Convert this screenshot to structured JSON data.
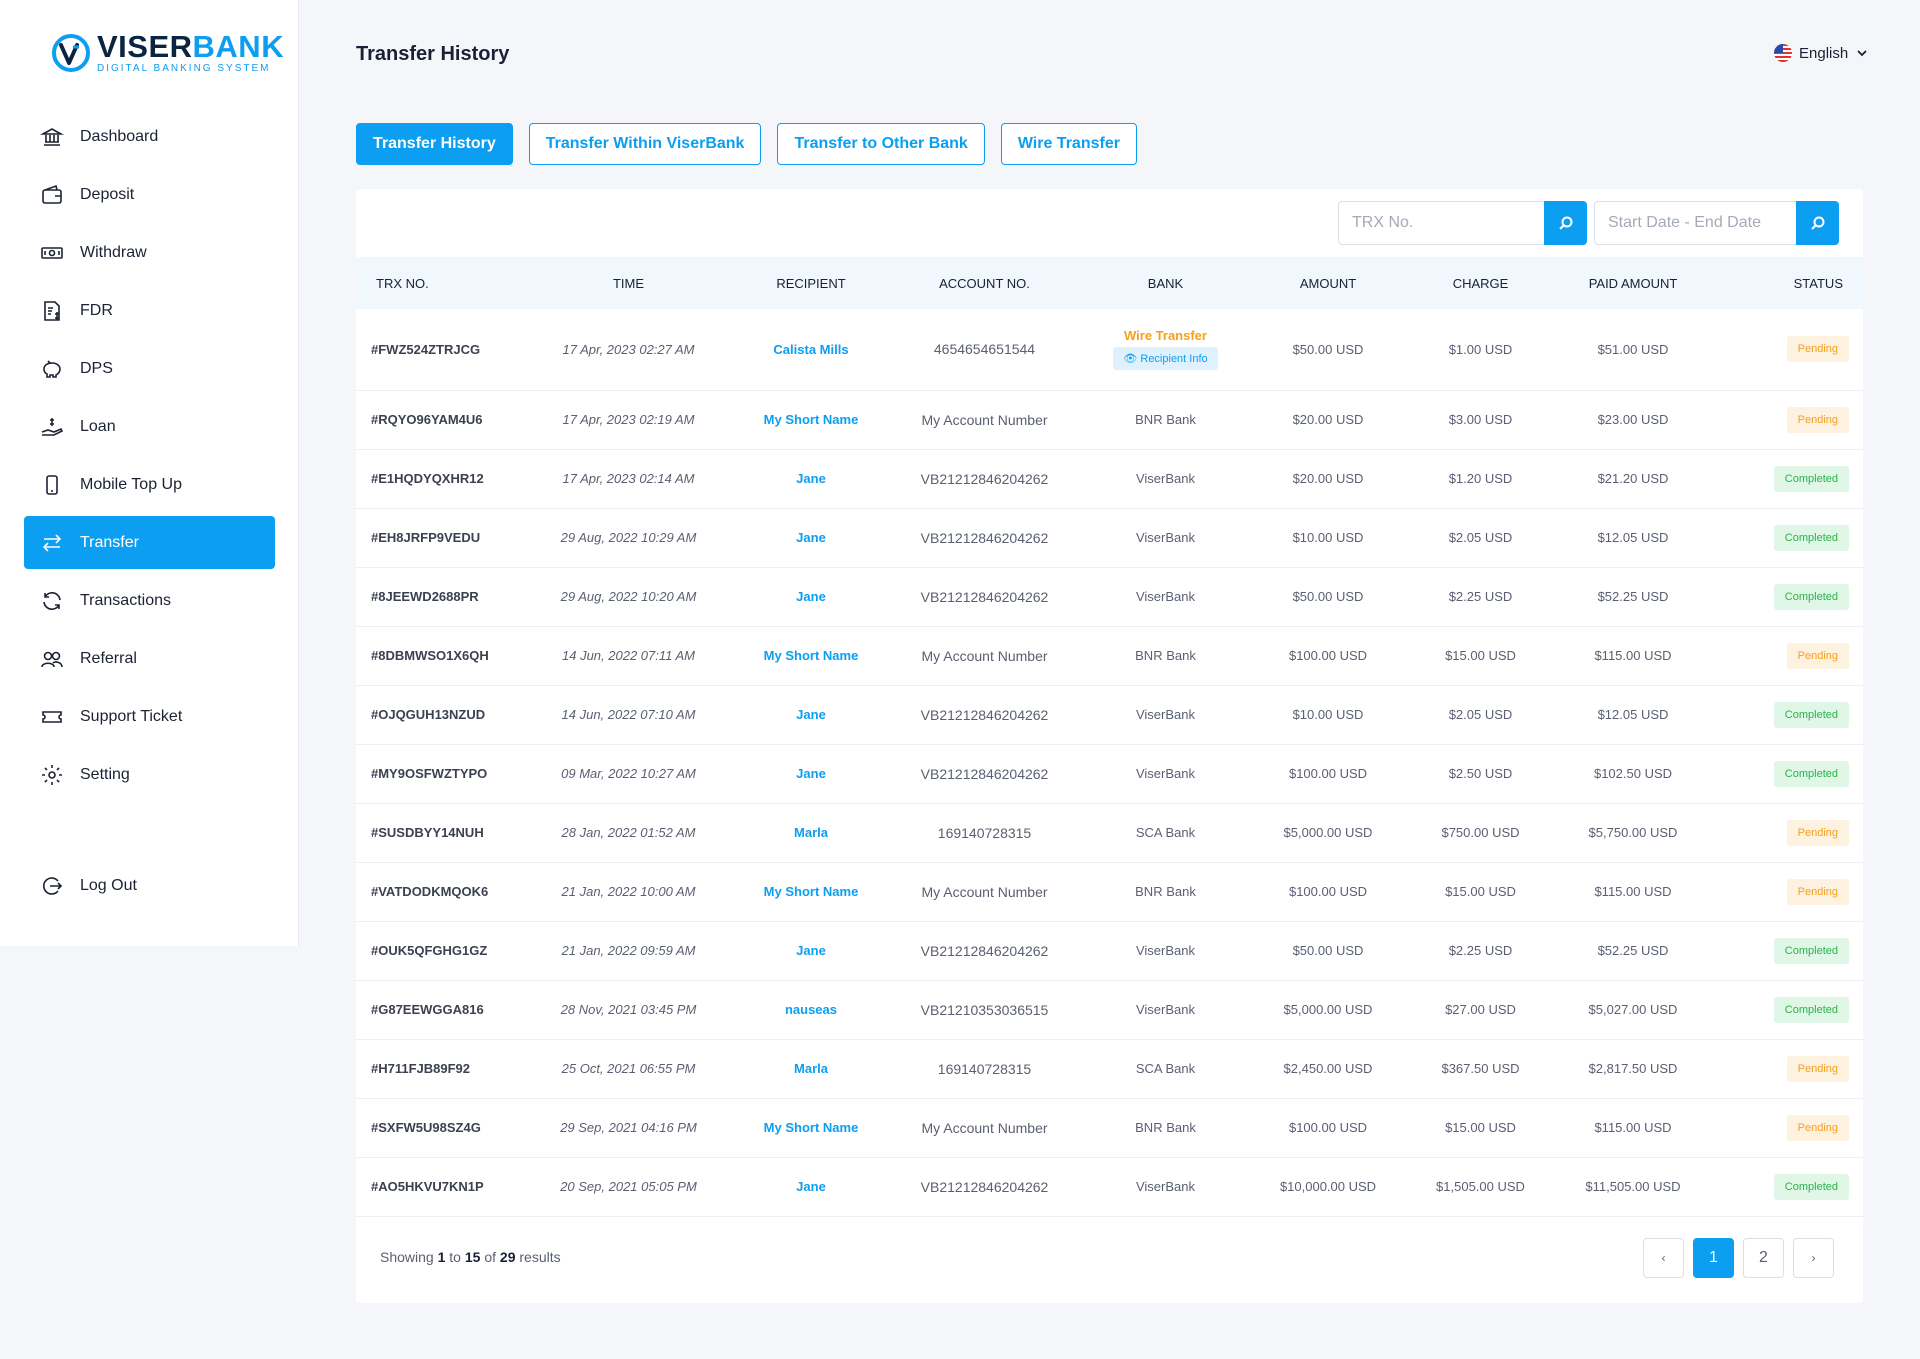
{
  "brand": {
    "name_part1": "VISER",
    "name_part2": "BANK",
    "tagline": "DIGITAL BANKING SYSTEM"
  },
  "sidebar": {
    "items": [
      {
        "label": "Dashboard",
        "icon": "bank-icon"
      },
      {
        "label": "Deposit",
        "icon": "wallet-icon"
      },
      {
        "label": "Withdraw",
        "icon": "cash-icon"
      },
      {
        "label": "FDR",
        "icon": "document-dollar-icon"
      },
      {
        "label": "DPS",
        "icon": "piggy-bank-icon"
      },
      {
        "label": "Loan",
        "icon": "hand-coin-icon"
      },
      {
        "label": "Mobile Top Up",
        "icon": "phone-icon"
      },
      {
        "label": "Transfer",
        "icon": "transfer-arrows-icon",
        "active": true
      },
      {
        "label": "Transactions",
        "icon": "refresh-icon"
      },
      {
        "label": "Referral",
        "icon": "users-icon"
      },
      {
        "label": "Support Ticket",
        "icon": "ticket-icon"
      },
      {
        "label": "Setting",
        "icon": "gear-icon"
      }
    ],
    "logout": {
      "label": "Log Out",
      "icon": "logout-icon"
    }
  },
  "header": {
    "title": "Transfer History",
    "language": "English"
  },
  "tabs": [
    {
      "label": "Transfer History",
      "active": true
    },
    {
      "label": "Transfer Within ViserBank"
    },
    {
      "label": "Transfer to Other Bank"
    },
    {
      "label": "Wire Transfer"
    }
  ],
  "search": {
    "trx_placeholder": "TRX No.",
    "date_placeholder": "Start Date - End Date"
  },
  "table": {
    "headers": [
      "TRX No.",
      "Time",
      "Recipient",
      "Account No.",
      "Bank",
      "Amount",
      "Charge",
      "Paid Amount",
      "Status"
    ],
    "rows": [
      {
        "trx": "#FWZ524ZTRJCG",
        "time": "17 Apr, 2023 02:27 AM",
        "recipient": "Calista Mills",
        "account": "4654654651544",
        "bank": "Wire Transfer",
        "bank_note": "Recipient Info",
        "amount": "$50.00 USD",
        "charge": "$1.00 USD",
        "paid": "$51.00 USD",
        "status": "Pending"
      },
      {
        "trx": "#RQYO96YAM4U6",
        "time": "17 Apr, 2023 02:19 AM",
        "recipient": "My Short Name",
        "account": "My Account Number",
        "bank": "BNR Bank",
        "amount": "$20.00 USD",
        "charge": "$3.00 USD",
        "paid": "$23.00 USD",
        "status": "Pending"
      },
      {
        "trx": "#E1HQDYQXHR12",
        "time": "17 Apr, 2023 02:14 AM",
        "recipient": "Jane",
        "account": "VB21212846204262",
        "bank": "ViserBank",
        "amount": "$20.00 USD",
        "charge": "$1.20 USD",
        "paid": "$21.20 USD",
        "status": "Completed"
      },
      {
        "trx": "#EH8JRFP9VEDU",
        "time": "29 Aug, 2022 10:29 AM",
        "recipient": "Jane",
        "account": "VB21212846204262",
        "bank": "ViserBank",
        "amount": "$10.00 USD",
        "charge": "$2.05 USD",
        "paid": "$12.05 USD",
        "status": "Completed"
      },
      {
        "trx": "#8JEEWD2688PR",
        "time": "29 Aug, 2022 10:20 AM",
        "recipient": "Jane",
        "account": "VB21212846204262",
        "bank": "ViserBank",
        "amount": "$50.00 USD",
        "charge": "$2.25 USD",
        "paid": "$52.25 USD",
        "status": "Completed"
      },
      {
        "trx": "#8DBMWSO1X6QH",
        "time": "14 Jun, 2022 07:11 AM",
        "recipient": "My Short Name",
        "account": "My Account Number",
        "bank": "BNR Bank",
        "amount": "$100.00 USD",
        "charge": "$15.00 USD",
        "paid": "$115.00 USD",
        "status": "Pending"
      },
      {
        "trx": "#OJQGUH13NZUD",
        "time": "14 Jun, 2022 07:10 AM",
        "recipient": "Jane",
        "account": "VB21212846204262",
        "bank": "ViserBank",
        "amount": "$10.00 USD",
        "charge": "$2.05 USD",
        "paid": "$12.05 USD",
        "status": "Completed"
      },
      {
        "trx": "#MY9OSFWZTYPO",
        "time": "09 Mar, 2022 10:27 AM",
        "recipient": "Jane",
        "account": "VB21212846204262",
        "bank": "ViserBank",
        "amount": "$100.00 USD",
        "charge": "$2.50 USD",
        "paid": "$102.50 USD",
        "status": "Completed"
      },
      {
        "trx": "#SUSDBYY14NUH",
        "time": "28 Jan, 2022 01:52 AM",
        "recipient": "Marla",
        "account": "169140728315",
        "bank": "SCA Bank",
        "amount": "$5,000.00 USD",
        "charge": "$750.00 USD",
        "paid": "$5,750.00 USD",
        "status": "Pending"
      },
      {
        "trx": "#VATDODKMQOK6",
        "time": "21 Jan, 2022 10:00 AM",
        "recipient": "My Short Name",
        "account": "My Account Number",
        "bank": "BNR Bank",
        "amount": "$100.00 USD",
        "charge": "$15.00 USD",
        "paid": "$115.00 USD",
        "status": "Pending"
      },
      {
        "trx": "#OUK5QFGHG1GZ",
        "time": "21 Jan, 2022 09:59 AM",
        "recipient": "Jane",
        "account": "VB21212846204262",
        "bank": "ViserBank",
        "amount": "$50.00 USD",
        "charge": "$2.25 USD",
        "paid": "$52.25 USD",
        "status": "Completed"
      },
      {
        "trx": "#G87EEWGGA816",
        "time": "28 Nov, 2021 03:45 PM",
        "recipient": "nauseas",
        "account": "VB21210353036515",
        "bank": "ViserBank",
        "amount": "$5,000.00 USD",
        "charge": "$27.00 USD",
        "paid": "$5,027.00 USD",
        "status": "Completed"
      },
      {
        "trx": "#H711FJB89F92",
        "time": "25 Oct, 2021 06:55 PM",
        "recipient": "Marla",
        "account": "169140728315",
        "bank": "SCA Bank",
        "amount": "$2,450.00 USD",
        "charge": "$367.50 USD",
        "paid": "$2,817.50 USD",
        "status": "Pending"
      },
      {
        "trx": "#SXFW5U98SZ4G",
        "time": "29 Sep, 2021 04:16 PM",
        "recipient": "My Short Name",
        "account": "My Account Number",
        "bank": "BNR Bank",
        "amount": "$100.00 USD",
        "charge": "$15.00 USD",
        "paid": "$115.00 USD",
        "status": "Pending"
      },
      {
        "trx": "#AO5HKVU7KN1P",
        "time": "20 Sep, 2021 05:05 PM",
        "recipient": "Jane",
        "account": "VB21212846204262",
        "bank": "ViserBank",
        "amount": "$10,000.00 USD",
        "charge": "$1,505.00 USD",
        "paid": "$11,505.00 USD",
        "status": "Completed"
      }
    ]
  },
  "footer": {
    "showing_prefix": "Showing",
    "from": "1",
    "to_word": "to",
    "to": "15",
    "of_word": "of",
    "total": "29",
    "results_word": "results",
    "pages": [
      "1",
      "2"
    ],
    "prev": "‹",
    "next": "›"
  },
  "colors": {
    "accent": "#0c9ef0",
    "pending": "#f7a01b",
    "completed": "#28b548"
  }
}
